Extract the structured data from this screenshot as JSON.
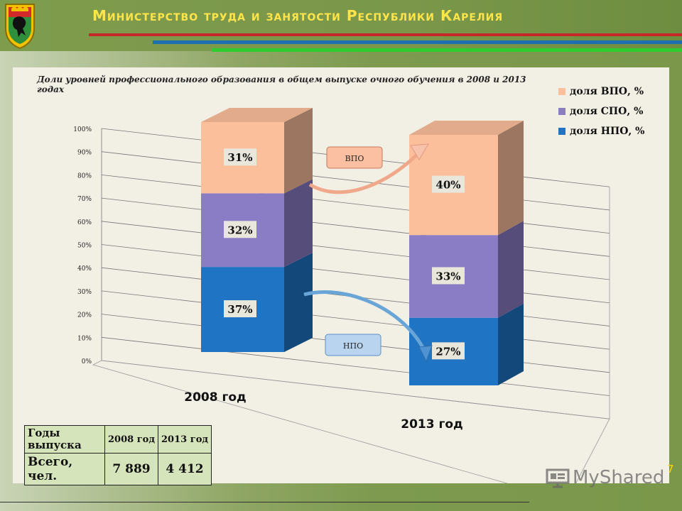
{
  "header": {
    "title": "Министерство труда и занятости Республики Карелия"
  },
  "colors": {
    "vpo": "#fbbf9c",
    "spo": "#8b7cc6",
    "npo": "#1f74c4",
    "title_text": "#ffe54a",
    "stripe_red": "#c62828",
    "stripe_blue": "#1e6fb0",
    "stripe_green": "#2ecc2e"
  },
  "chart_data": {
    "type": "bar",
    "stacked": true,
    "three_d": true,
    "title": "Доли уровней профессионального образования в общем выпуске очного обучения в 2008 и 2013 годах",
    "categories": [
      "2008 год",
      "2013 год"
    ],
    "series": [
      {
        "name": "доля НПО, %",
        "key": "npo",
        "values": [
          37,
          27
        ],
        "labels": [
          "37%",
          "27%"
        ]
      },
      {
        "name": "доля СПО, %",
        "key": "spo",
        "values": [
          32,
          33
        ],
        "labels": [
          "32%",
          "33%"
        ]
      },
      {
        "name": "доля ВПО, %",
        "key": "vpo",
        "values": [
          31,
          40
        ],
        "labels": [
          "31%",
          "40%"
        ]
      }
    ],
    "legend_order": [
      "доля ВПО, %",
      "доля СПО, %",
      "доля НПО, %"
    ],
    "legend_position": "top-right",
    "ylim": [
      0,
      100
    ],
    "y_ticks": [
      "0%",
      "10%",
      "20%",
      "30%",
      "40%",
      "50%",
      "60%",
      "70%",
      "80%",
      "90%",
      "100%"
    ],
    "grid": true,
    "annotations": [
      {
        "text": "ВПО",
        "type": "arrow",
        "from": "2008 год",
        "to": "2013 год"
      },
      {
        "text": "НПО",
        "type": "arrow",
        "from": "2008 год",
        "to": "2013 год"
      }
    ]
  },
  "table": {
    "corner": "Годы выпуска",
    "headers": [
      "2008 год",
      "2013 год"
    ],
    "row_label": "Всего, чел.",
    "values": [
      "7 889",
      "4 412"
    ]
  },
  "page_number": "7",
  "watermark": "MyShared"
}
